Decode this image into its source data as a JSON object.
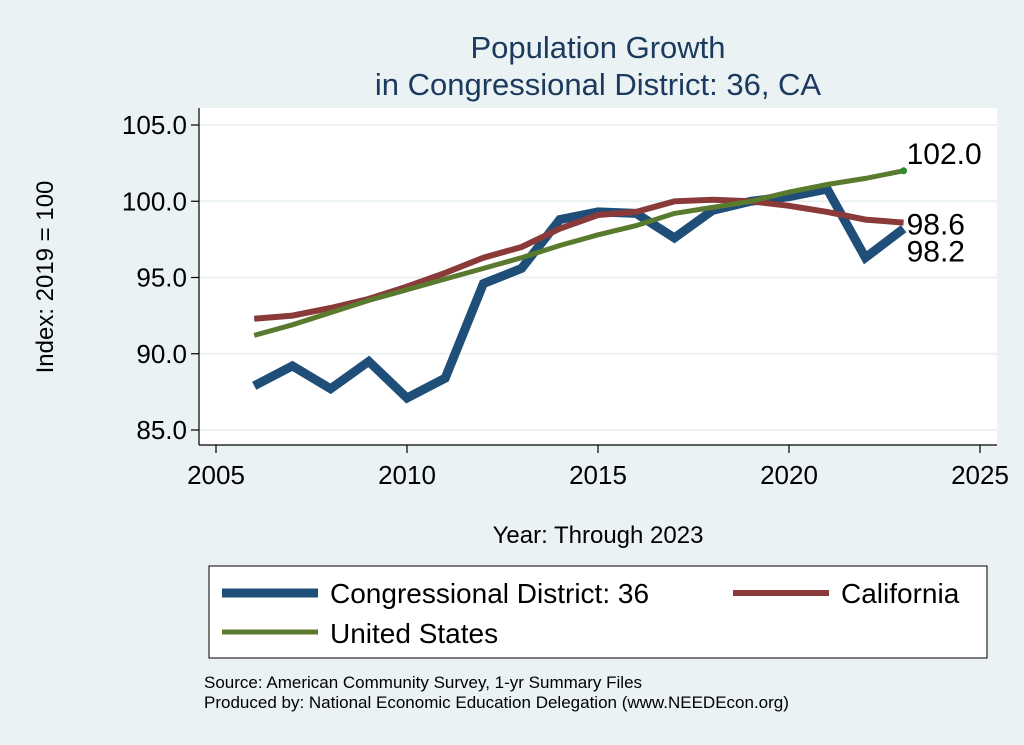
{
  "chart_data": {
    "type": "line",
    "title": [
      "Population Growth",
      "in Congressional District: 36, CA"
    ],
    "xlabel": "Year: Through 2023",
    "ylabel": "Index: 2019 = 100",
    "xlim": [
      2005,
      2025
    ],
    "ylim": [
      85,
      105
    ],
    "x_ticks": [
      2005,
      2010,
      2015,
      2020,
      2025
    ],
    "x_tick_labels": [
      "2005",
      "2010",
      "2015",
      "2020",
      "2025"
    ],
    "y_ticks": [
      85,
      90,
      95,
      100,
      105
    ],
    "y_tick_labels": [
      "85.0",
      "90.0",
      "95.0",
      "100.0",
      "105.0"
    ],
    "grid": "horizontal",
    "legend_position": "bottom",
    "series": [
      {
        "name": "Congressional District: 36",
        "color": "#1f4e79",
        "x": [
          2006,
          2007,
          2008,
          2009,
          2010,
          2011,
          2012,
          2013,
          2014,
          2015,
          2016,
          2017,
          2018,
          2019,
          2020,
          2021,
          2022,
          2023
        ],
        "y": [
          87.9,
          89.2,
          87.7,
          89.5,
          87.1,
          88.4,
          94.6,
          95.6,
          98.8,
          99.3,
          99.2,
          97.6,
          99.4,
          100.0,
          100.3,
          100.8,
          96.3,
          98.2
        ],
        "end_label": "98.2"
      },
      {
        "name": "California",
        "color": "#8b3a3a",
        "x": [
          2006,
          2007,
          2008,
          2009,
          2010,
          2011,
          2012,
          2013,
          2014,
          2015,
          2016,
          2017,
          2018,
          2019,
          2020,
          2021,
          2022,
          2023
        ],
        "y": [
          92.3,
          92.5,
          93.0,
          93.6,
          94.4,
          95.3,
          96.3,
          97.0,
          98.2,
          99.1,
          99.3,
          100.0,
          100.1,
          100.0,
          99.7,
          99.3,
          98.8,
          98.6
        ],
        "end_label": "98.6"
      },
      {
        "name": "United States",
        "color": "#5a7a2e",
        "x": [
          2006,
          2007,
          2008,
          2009,
          2010,
          2011,
          2012,
          2013,
          2014,
          2015,
          2016,
          2017,
          2018,
          2019,
          2020,
          2021,
          2022,
          2023
        ],
        "y": [
          91.2,
          91.9,
          92.7,
          93.5,
          94.2,
          94.9,
          95.6,
          96.3,
          97.1,
          97.8,
          98.4,
          99.2,
          99.6,
          100.0,
          100.6,
          101.1,
          101.5,
          102.0
        ],
        "end_label": "102.0"
      }
    ],
    "notes": [
      "Source: American Community Survey, 1-yr Summary Files",
      "Produced by: National Economic Education Delegation (www.NEEDEcon.org)"
    ]
  }
}
